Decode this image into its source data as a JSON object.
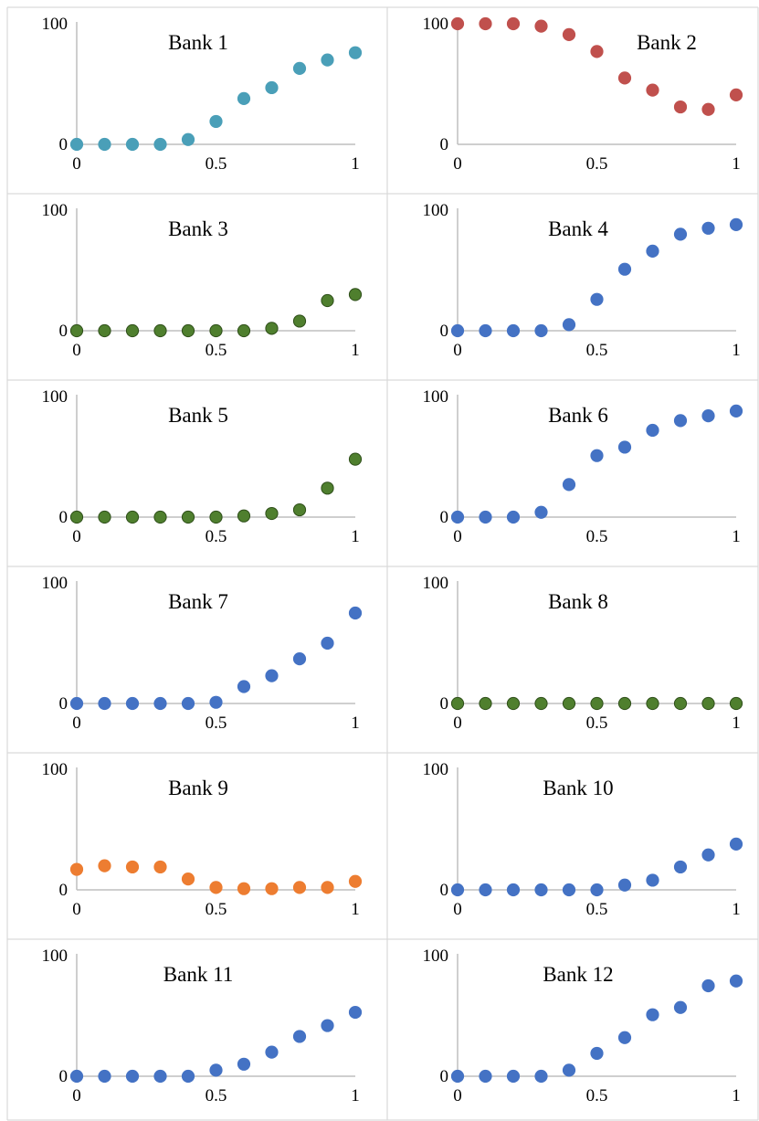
{
  "chart_data": [
    {
      "type": "scatter",
      "title": "Bank 1",
      "color": "#4a9fb8",
      "x": [
        0,
        0.1,
        0.2,
        0.3,
        0.4,
        0.5,
        0.6,
        0.7,
        0.8,
        0.9,
        1
      ],
      "y": [
        0,
        0,
        0,
        0,
        4,
        19,
        38,
        47,
        63,
        70,
        76
      ],
      "xlim": [
        0,
        1
      ],
      "ylim": [
        0,
        100
      ],
      "xticks": [
        "0",
        "0.5",
        "1"
      ],
      "yticks": [
        "0",
        "100"
      ]
    },
    {
      "type": "scatter",
      "title": "Bank 2",
      "color": "#c0504d",
      "x": [
        0,
        0.1,
        0.2,
        0.3,
        0.4,
        0.5,
        0.6,
        0.7,
        0.8,
        0.9,
        1
      ],
      "y": [
        100,
        100,
        100,
        98,
        91,
        77,
        55,
        45,
        31,
        29,
        41
      ],
      "xlim": [
        0,
        1
      ],
      "ylim": [
        0,
        100
      ],
      "xticks": [
        "0",
        "0.5",
        "1"
      ],
      "yticks": [
        "0",
        "100"
      ]
    },
    {
      "type": "scatter",
      "title": "Bank 3",
      "color": "#4f7f2e",
      "x": [
        0,
        0.1,
        0.2,
        0.3,
        0.4,
        0.5,
        0.6,
        0.7,
        0.8,
        0.9,
        1
      ],
      "y": [
        0,
        0,
        0,
        0,
        0,
        0,
        0,
        2,
        8,
        25,
        30
      ],
      "xlim": [
        0,
        1
      ],
      "ylim": [
        0,
        100
      ],
      "xticks": [
        "0",
        "0.5",
        "1"
      ],
      "yticks": [
        "0",
        "100"
      ]
    },
    {
      "type": "scatter",
      "title": "Bank 4",
      "color": "#4472c4",
      "x": [
        0,
        0.1,
        0.2,
        0.3,
        0.4,
        0.5,
        0.6,
        0.7,
        0.8,
        0.9,
        1
      ],
      "y": [
        0,
        0,
        0,
        0,
        5,
        26,
        51,
        66,
        80,
        85,
        88
      ],
      "xlim": [
        0,
        1
      ],
      "ylim": [
        0,
        100
      ],
      "xticks": [
        "0",
        "0.5",
        "1"
      ],
      "yticks": [
        "0",
        "100"
      ]
    },
    {
      "type": "scatter",
      "title": "Bank 5",
      "color": "#4f7f2e",
      "x": [
        0,
        0.1,
        0.2,
        0.3,
        0.4,
        0.5,
        0.6,
        0.7,
        0.8,
        0.9,
        1
      ],
      "y": [
        0,
        0,
        0,
        0,
        0,
        0,
        1,
        3,
        6,
        24,
        48
      ],
      "xlim": [
        0,
        1
      ],
      "ylim": [
        0,
        100
      ],
      "xticks": [
        "0",
        "0.5",
        "1"
      ],
      "yticks": [
        "0",
        "100"
      ]
    },
    {
      "type": "scatter",
      "title": "Bank 6",
      "color": "#4472c4",
      "x": [
        0,
        0.1,
        0.2,
        0.3,
        0.4,
        0.5,
        0.6,
        0.7,
        0.8,
        0.9,
        1
      ],
      "y": [
        0,
        0,
        0,
        4,
        27,
        51,
        58,
        72,
        80,
        84,
        88
      ],
      "xlim": [
        0,
        1
      ],
      "ylim": [
        0,
        100
      ],
      "xticks": [
        "0",
        "0.5",
        "1"
      ],
      "yticks": [
        "0",
        "100"
      ]
    },
    {
      "type": "scatter",
      "title": "Bank 7",
      "color": "#4472c4",
      "x": [
        0,
        0.1,
        0.2,
        0.3,
        0.4,
        0.5,
        0.6,
        0.7,
        0.8,
        0.9,
        1
      ],
      "y": [
        0,
        0,
        0,
        0,
        0,
        1,
        14,
        23,
        37,
        50,
        75
      ],
      "xlim": [
        0,
        1
      ],
      "ylim": [
        0,
        100
      ],
      "xticks": [
        "0",
        "0.5",
        "1"
      ],
      "yticks": [
        "0",
        "100"
      ]
    },
    {
      "type": "scatter",
      "title": "Bank 8",
      "color": "#4f7f2e",
      "x": [
        0,
        0.1,
        0.2,
        0.3,
        0.4,
        0.5,
        0.6,
        0.7,
        0.8,
        0.9,
        1
      ],
      "y": [
        0,
        0,
        0,
        0,
        0,
        0,
        0,
        0,
        0,
        0,
        0
      ],
      "xlim": [
        0,
        1
      ],
      "ylim": [
        0,
        100
      ],
      "xticks": [
        "0",
        "0.5",
        "1"
      ],
      "yticks": [
        "0",
        "100"
      ]
    },
    {
      "type": "scatter",
      "title": "Bank 9",
      "color": "#ed7d31",
      "x": [
        0,
        0.1,
        0.2,
        0.3,
        0.4,
        0.5,
        0.6,
        0.7,
        0.8,
        0.9,
        1
      ],
      "y": [
        17,
        20,
        19,
        19,
        9,
        2,
        1,
        1,
        2,
        2,
        7
      ],
      "xlim": [
        0,
        1
      ],
      "ylim": [
        0,
        100
      ],
      "xticks": [
        "0",
        "0.5",
        "1"
      ],
      "yticks": [
        "0",
        "100"
      ]
    },
    {
      "type": "scatter",
      "title": "Bank 10",
      "color": "#4472c4",
      "x": [
        0,
        0.1,
        0.2,
        0.3,
        0.4,
        0.5,
        0.6,
        0.7,
        0.8,
        0.9,
        1
      ],
      "y": [
        0,
        0,
        0,
        0,
        0,
        0,
        4,
        8,
        19,
        29,
        38
      ],
      "xlim": [
        0,
        1
      ],
      "ylim": [
        0,
        100
      ],
      "xticks": [
        "0",
        "0.5",
        "1"
      ],
      "yticks": [
        "0",
        "100"
      ]
    },
    {
      "type": "scatter",
      "title": "Bank 11",
      "color": "#4472c4",
      "x": [
        0,
        0.1,
        0.2,
        0.3,
        0.4,
        0.5,
        0.6,
        0.7,
        0.8,
        0.9,
        1
      ],
      "y": [
        0,
        0,
        0,
        0,
        0,
        5,
        10,
        20,
        33,
        42,
        53
      ],
      "xlim": [
        0,
        1
      ],
      "ylim": [
        0,
        100
      ],
      "xticks": [
        "0",
        "0.5",
        "1"
      ],
      "yticks": [
        "0",
        "100"
      ]
    },
    {
      "type": "scatter",
      "title": "Bank 12",
      "color": "#4472c4",
      "x": [
        0,
        0.1,
        0.2,
        0.3,
        0.4,
        0.5,
        0.6,
        0.7,
        0.8,
        0.9,
        1
      ],
      "y": [
        0,
        0,
        0,
        0,
        5,
        19,
        32,
        51,
        57,
        75,
        79
      ],
      "xlim": [
        0,
        1
      ],
      "ylim": [
        0,
        100
      ],
      "xticks": [
        "0",
        "0.5",
        "1"
      ],
      "yticks": [
        "0",
        "100"
      ]
    }
  ]
}
